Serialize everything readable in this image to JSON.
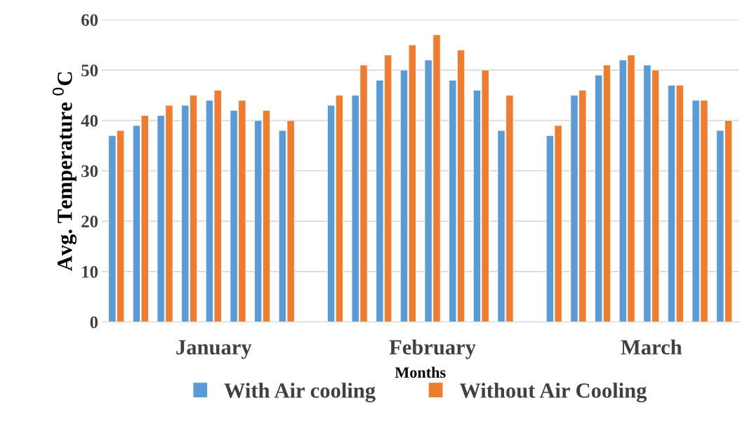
{
  "chart_data": {
    "type": "bar",
    "xlabel": "Months",
    "ylabel": "Avg. Temperature $^{0}$C",
    "categories": [
      null,
      null,
      null,
      null,
      "January",
      null,
      null,
      null,
      null,
      null,
      null,
      null,
      null,
      "February",
      null,
      null,
      null,
      null,
      null,
      null,
      null,
      null,
      "March",
      null,
      null,
      null
    ],
    "series": [
      {
        "name": "With Air cooling",
        "color": "#5b9bd5",
        "values": [
          37,
          39,
          41,
          43,
          44,
          42,
          40,
          38,
          null,
          43,
          45,
          48,
          50,
          52,
          48,
          46,
          38,
          null,
          37,
          45,
          49,
          52,
          51,
          47,
          44,
          38
        ]
      },
      {
        "name": "Without Air Cooling",
        "color": "#ed7d31",
        "values": [
          38,
          41,
          43,
          45,
          46,
          44,
          42,
          40,
          null,
          45,
          51,
          53,
          55,
          57,
          54,
          50,
          45,
          null,
          39,
          46,
          51,
          53,
          50,
          47,
          44,
          40
        ]
      }
    ],
    "ylim": [
      0,
      60
    ],
    "yticks": [
      0,
      10,
      20,
      30,
      40,
      50,
      60
    ],
    "grid": "y",
    "legend": "bottom"
  }
}
